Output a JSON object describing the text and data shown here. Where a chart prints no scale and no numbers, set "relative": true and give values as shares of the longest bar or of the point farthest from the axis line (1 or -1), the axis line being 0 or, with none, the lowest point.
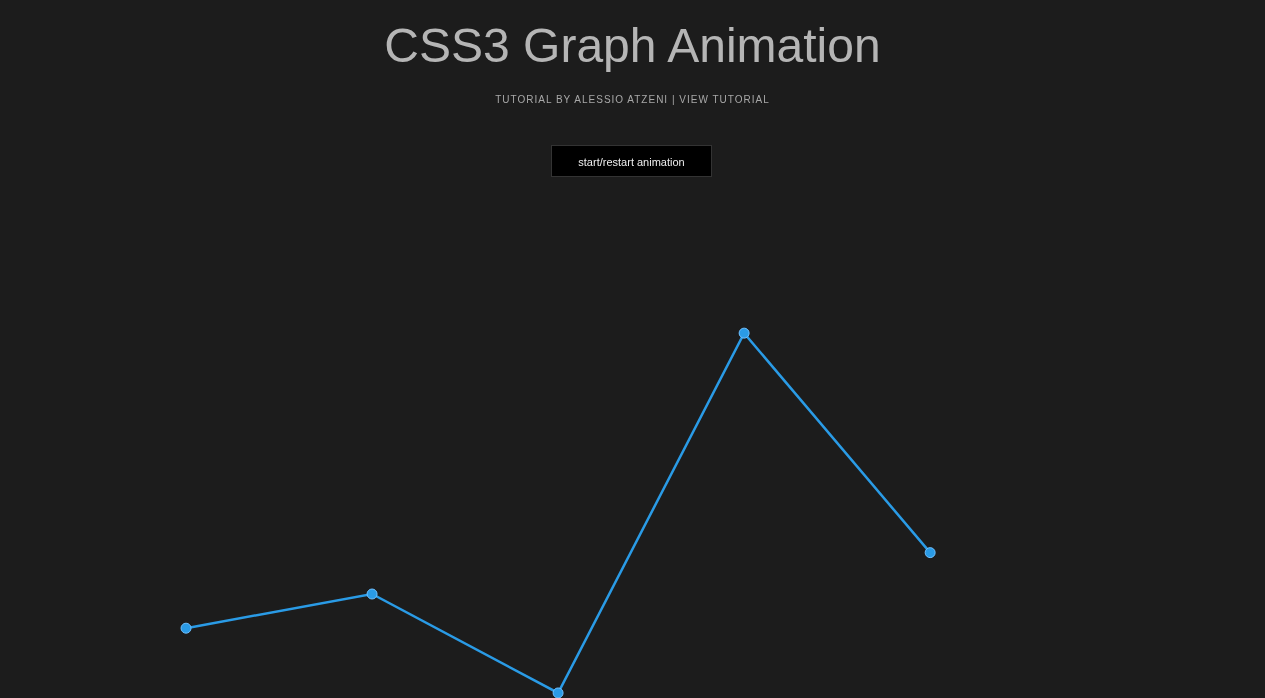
{
  "chart_data": {
    "type": "line",
    "title": "CSS3 Graph Animation",
    "subtitle": "TUTORIAL BY ALESSIO ATZENI | VIEW TUTORIAL",
    "annotations": [
      "start/restart animation"
    ],
    "relative": true,
    "categories": [
      null,
      null,
      null,
      null,
      null
    ],
    "series": [
      {
        "color": "#2a9be6",
        "values": [
          0.18,
          0.275,
          0,
          1,
          0.39
        ]
      }
    ],
    "marker": "circle",
    "line_style": "solid"
  }
}
